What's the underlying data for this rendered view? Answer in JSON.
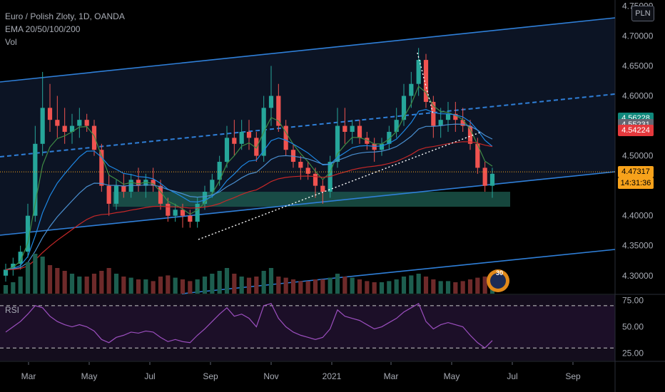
{
  "legend": {
    "symbol": "Euro / Polish Zloty, 1D, OANDA",
    "ema": "EMA 20/50/100/200",
    "vol": "Vol"
  },
  "currency_button": "PLN",
  "price_badges": [
    {
      "id": "ema-a",
      "value": "4.56228",
      "price": 4.56228,
      "color": "#10897c"
    },
    {
      "id": "ema-b",
      "value": "4.55231",
      "price": 4.55231,
      "color": "#636772"
    },
    {
      "id": "ema-c",
      "value": "4.54224",
      "price": 4.54224,
      "color": "#e5393d"
    },
    {
      "id": "last",
      "value": "4.47317",
      "price": 4.47317,
      "color": "#f7a21b"
    }
  ],
  "countdown": "14:31:36",
  "rsi_label": "RSI",
  "logo_text": "30",
  "colors": {
    "up": "#26a69a",
    "down": "#ef5350",
    "channel": "#2f7fd8",
    "ema20": "#3f8b45",
    "ema50": "#1e88e5",
    "ema100": "#4a8fd0",
    "ema200": "#c62828",
    "rsi": "#9c4fbf",
    "zone": "#1e5e52"
  },
  "chart_data": {
    "type": "candlestick",
    "title": "Euro / Polish Zloty, 1D, OANDA",
    "price_axis": {
      "range": [
        4.27,
        4.76
      ],
      "ticks": [
        "4.75000",
        "4.70000",
        "4.65000",
        "4.60000",
        "4.50000",
        "4.45000",
        "4.40000",
        "4.35000",
        "4.30000"
      ]
    },
    "rsi_axis": {
      "range": [
        18,
        80
      ],
      "ticks": [
        "75.00",
        "50.00",
        "25.00"
      ],
      "overbought": 70,
      "oversold": 30
    },
    "time_axis": {
      "ticks": [
        "Mar",
        "May",
        "Jul",
        "Sep",
        "Nov",
        "2021",
        "Mar",
        "May",
        "Jul",
        "Sep"
      ]
    },
    "ohlc_weekly": [
      [
        4.3,
        4.32,
        4.29,
        4.31
      ],
      [
        4.31,
        4.33,
        4.3,
        4.32
      ],
      [
        4.32,
        4.35,
        4.31,
        4.34
      ],
      [
        4.34,
        4.42,
        4.33,
        4.4
      ],
      [
        4.4,
        4.55,
        4.39,
        4.52
      ],
      [
        4.52,
        4.64,
        4.5,
        4.58
      ],
      [
        4.58,
        4.62,
        4.54,
        4.56
      ],
      [
        4.56,
        4.6,
        4.53,
        4.55
      ],
      [
        4.55,
        4.58,
        4.52,
        4.54
      ],
      [
        4.54,
        4.57,
        4.52,
        4.55
      ],
      [
        4.55,
        4.58,
        4.53,
        4.56
      ],
      [
        4.56,
        4.57,
        4.54,
        4.55
      ],
      [
        4.55,
        4.56,
        4.5,
        4.51
      ],
      [
        4.51,
        4.52,
        4.44,
        4.45
      ],
      [
        4.45,
        4.47,
        4.4,
        4.42
      ],
      [
        4.42,
        4.46,
        4.41,
        4.45
      ],
      [
        4.45,
        4.47,
        4.43,
        4.44
      ],
      [
        4.44,
        4.47,
        4.43,
        4.46
      ],
      [
        4.46,
        4.48,
        4.44,
        4.45
      ],
      [
        4.45,
        4.47,
        4.43,
        4.46
      ],
      [
        4.46,
        4.48,
        4.44,
        4.45
      ],
      [
        4.45,
        4.46,
        4.41,
        4.42
      ],
      [
        4.42,
        4.43,
        4.39,
        4.4
      ],
      [
        4.4,
        4.42,
        4.39,
        4.41
      ],
      [
        4.41,
        4.42,
        4.38,
        4.4
      ],
      [
        4.4,
        4.41,
        4.38,
        4.39
      ],
      [
        4.39,
        4.43,
        4.38,
        4.42
      ],
      [
        4.42,
        4.45,
        4.41,
        4.44
      ],
      [
        4.44,
        4.47,
        4.43,
        4.46
      ],
      [
        4.46,
        4.5,
        4.45,
        4.49
      ],
      [
        4.49,
        4.55,
        4.48,
        4.53
      ],
      [
        4.53,
        4.56,
        4.5,
        4.52
      ],
      [
        4.52,
        4.56,
        4.51,
        4.54
      ],
      [
        4.54,
        4.56,
        4.51,
        4.53
      ],
      [
        4.53,
        4.54,
        4.49,
        4.5
      ],
      [
        4.5,
        4.6,
        4.49,
        4.58
      ],
      [
        4.58,
        4.65,
        4.55,
        4.6
      ],
      [
        4.6,
        4.62,
        4.54,
        4.55
      ],
      [
        4.55,
        4.56,
        4.5,
        4.51
      ],
      [
        4.51,
        4.52,
        4.48,
        4.49
      ],
      [
        4.49,
        4.5,
        4.46,
        4.48
      ],
      [
        4.48,
        4.49,
        4.46,
        4.47
      ],
      [
        4.47,
        4.48,
        4.43,
        4.45
      ],
      [
        4.45,
        4.46,
        4.42,
        4.44
      ],
      [
        4.44,
        4.5,
        4.43,
        4.49
      ],
      [
        4.49,
        4.58,
        4.48,
        4.55
      ],
      [
        4.55,
        4.58,
        4.52,
        4.54
      ],
      [
        4.54,
        4.56,
        4.52,
        4.55
      ],
      [
        4.55,
        4.56,
        4.52,
        4.53
      ],
      [
        4.53,
        4.54,
        4.51,
        4.52
      ],
      [
        4.52,
        4.53,
        4.49,
        4.51
      ],
      [
        4.51,
        4.53,
        4.5,
        4.52
      ],
      [
        4.52,
        4.55,
        4.51,
        4.54
      ],
      [
        4.54,
        4.58,
        4.53,
        4.56
      ],
      [
        4.56,
        4.62,
        4.55,
        4.6
      ],
      [
        4.6,
        4.64,
        4.58,
        4.62
      ],
      [
        4.62,
        4.68,
        4.6,
        4.66
      ],
      [
        4.66,
        4.67,
        4.58,
        4.59
      ],
      [
        4.59,
        4.6,
        4.53,
        4.55
      ],
      [
        4.55,
        4.58,
        4.53,
        4.56
      ],
      [
        4.56,
        4.59,
        4.54,
        4.57
      ],
      [
        4.57,
        4.59,
        4.54,
        4.56
      ],
      [
        4.56,
        4.58,
        4.54,
        4.55
      ],
      [
        4.55,
        4.56,
        4.51,
        4.52
      ],
      [
        4.52,
        4.53,
        4.47,
        4.48
      ],
      [
        4.48,
        4.49,
        4.44,
        4.45
      ],
      [
        4.45,
        4.48,
        4.43,
        4.47
      ]
    ],
    "ema_series": [
      {
        "name": "EMA 20",
        "color": "#3f8b45"
      },
      {
        "name": "EMA 50",
        "color": "#1e88e5"
      },
      {
        "name": "EMA 100",
        "color": "#4a8fd0"
      },
      {
        "name": "EMA 200",
        "color": "#c62828"
      }
    ],
    "rsi_values": [
      45,
      50,
      55,
      62,
      70,
      68,
      60,
      55,
      52,
      50,
      52,
      50,
      46,
      38,
      35,
      40,
      42,
      45,
      44,
      46,
      45,
      40,
      36,
      38,
      36,
      35,
      42,
      48,
      55,
      62,
      68,
      60,
      62,
      58,
      50,
      70,
      72,
      58,
      50,
      45,
      42,
      40,
      38,
      40,
      48,
      66,
      60,
      58,
      56,
      52,
      48,
      50,
      54,
      58,
      64,
      68,
      72,
      55,
      48,
      52,
      54,
      52,
      50,
      42,
      35,
      30,
      37
    ],
    "volume_relative": [
      0.15,
      0.2,
      0.3,
      0.55,
      0.7,
      0.65,
      0.5,
      0.45,
      0.4,
      0.35,
      0.3,
      0.3,
      0.35,
      0.4,
      0.45,
      0.35,
      0.3,
      0.28,
      0.25,
      0.25,
      0.22,
      0.3,
      0.32,
      0.28,
      0.25,
      0.22,
      0.25,
      0.3,
      0.35,
      0.4,
      0.45,
      0.35,
      0.3,
      0.28,
      0.3,
      0.4,
      0.45,
      0.3,
      0.28,
      0.25,
      0.22,
      0.22,
      0.25,
      0.25,
      0.28,
      0.35,
      0.3,
      0.28,
      0.25,
      0.22,
      0.2,
      0.2,
      0.22,
      0.25,
      0.3,
      0.32,
      0.35,
      0.3,
      0.25,
      0.22,
      0.22,
      0.2,
      0.22,
      0.25,
      0.28,
      0.3,
      0.25
    ],
    "support_zone": [
      4.415,
      4.44
    ]
  }
}
